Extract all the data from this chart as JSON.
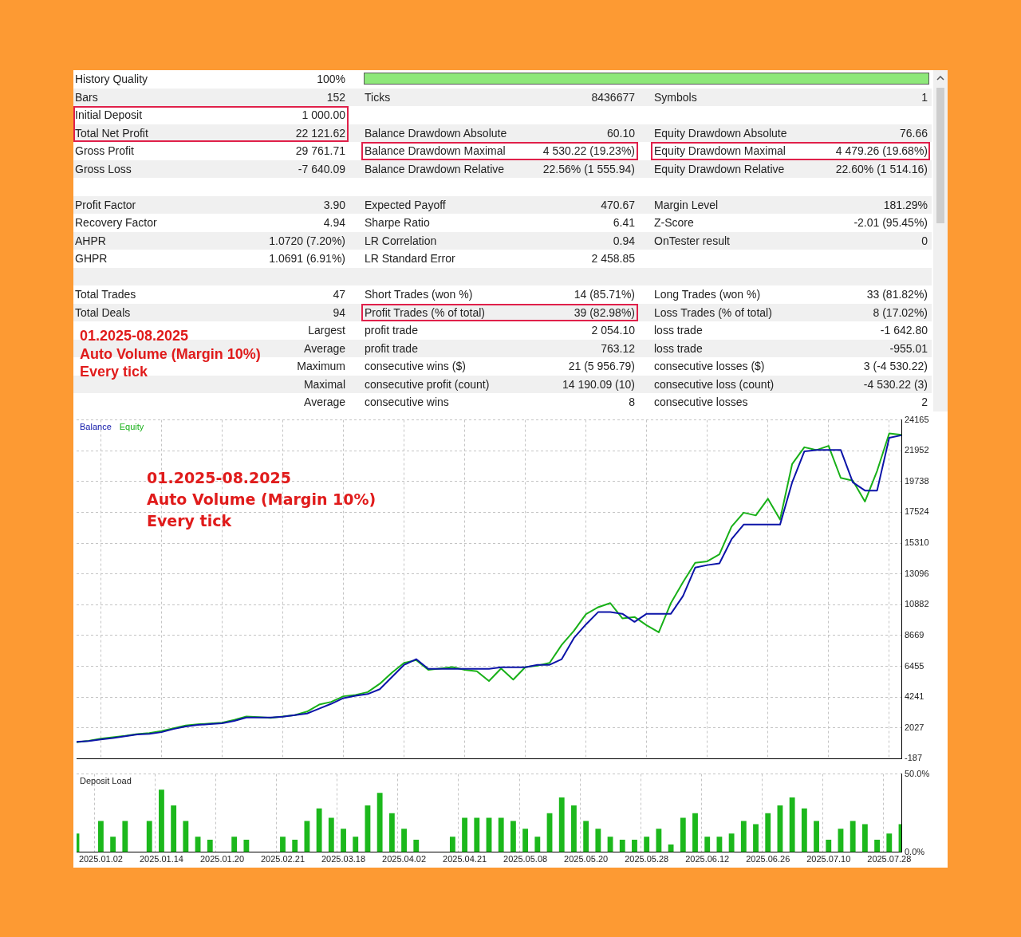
{
  "chart_data": [
    {
      "type": "other",
      "annotations": [
        "History Quality",
        "100%",
        "Bars",
        "152",
        "Ticks",
        "8436677",
        "Symbols",
        "1",
        "Initial Deposit",
        "1 000.00",
        "Total Net Profit",
        "22 121.62",
        "Balance Drawdown Absolute",
        "60.10",
        "Equity Drawdown Absolute",
        "76.66",
        "Gross Profit",
        "29 761.71",
        "Balance Drawdown Maximal",
        "4 530.22 (19.23%)",
        "Equity Drawdown Maximal",
        "4 479.26 (19.68%)",
        "Gross Loss",
        "-7 640.09",
        "Balance Drawdown Relative",
        "22.56% (1 555.94)",
        "Equity Drawdown Relative",
        "22.60% (1 514.16)",
        "Profit Factor",
        "3.90",
        "Expected Payoff",
        "470.67",
        "Margin Level",
        "181.29%",
        "Recovery Factor",
        "4.94",
        "Sharpe Ratio",
        "6.41",
        "Z-Score",
        "-2.01 (95.45%)",
        "AHPR",
        "1.0720 (7.20%)",
        "LR Correlation",
        "0.94",
        "OnTester result",
        "0",
        "GHPR",
        "1.0691 (6.91%)",
        "LR Standard Error",
        "2 458.85",
        "Total Trades",
        "47",
        "Short Trades (won %)",
        "14 (85.71%)",
        "Long Trades (won %)",
        "33 (81.82%)",
        "Total Deals",
        "94",
        "Profit Trades (% of total)",
        "39 (82.98%)",
        "Loss Trades (% of total)",
        "8 (17.02%)",
        "01.2025-08.2025",
        "Largest",
        "profit trade",
        "2 054.10",
        "loss trade",
        "-1 642.80",
        "Auto Volume (Margin 10%)",
        "Average",
        "profit trade",
        "763.12",
        "loss trade",
        "-955.01",
        "Every tick",
        "Maximum",
        "consecutive wins ($)",
        "21 (5 956.79)",
        "consecutive losses ($)",
        "3 (-4 530.22)",
        "Maximal",
        "consecutive profit (count)",
        "14 190.09 (10)",
        "consecutive loss (count)",
        "-4 530.22 (3)",
        "Average",
        "consecutive wins",
        "8",
        "consecutive losses",
        "2"
      ]
    },
    {
      "type": "line",
      "categories": [
        null,
        null,
        "2025.01.02",
        null,
        null,
        null,
        null,
        "2025.01.14",
        null,
        null,
        null,
        null,
        "2025.01.20",
        null,
        null,
        null,
        null,
        "2025.02.21",
        null,
        null,
        null,
        null,
        "2025.03.18",
        null,
        null,
        null,
        null,
        "2025.04.02",
        null,
        null,
        null,
        null,
        "2025.04.21",
        null,
        null,
        null,
        null,
        "2025.05.08",
        null,
        null,
        null,
        null,
        "2025.05.20",
        null,
        null,
        null,
        null,
        "2025.05.28",
        null,
        null,
        null,
        null,
        "2025.06.12",
        null,
        null,
        null,
        null,
        "2025.06.26",
        null,
        null,
        null,
        null,
        "2025.07.10",
        null,
        null,
        null,
        null,
        "2025.07.28",
        null
      ],
      "series": [
        {
          "name": "Balance",
          "color": "#0c14a8",
          "values": [
            1020,
            1080,
            1200,
            1300,
            1430,
            1550,
            1600,
            1720,
            1950,
            2130,
            2240,
            2300,
            2360,
            2530,
            2770,
            2770,
            2770,
            2830,
            2950,
            3060,
            3410,
            3760,
            4170,
            4340,
            4460,
            4810,
            5680,
            6560,
            6970,
            6270,
            6270,
            6270,
            6270,
            6270,
            6270,
            6380,
            6380,
            6380,
            6560,
            6560,
            6970,
            8480,
            9470,
            10350,
            10350,
            10230,
            9650,
            10230,
            10230,
            10230,
            11510,
            13550,
            13730,
            13850,
            15590,
            16640,
            16640,
            16640,
            16640,
            19680,
            21900,
            22010,
            22010,
            22010,
            19680,
            19090,
            19090,
            22880,
            23060
          ]
        },
        {
          "name": "Equity",
          "color": "#18b018",
          "values": [
            1000,
            1100,
            1250,
            1350,
            1450,
            1580,
            1650,
            1800,
            2000,
            2200,
            2280,
            2350,
            2400,
            2600,
            2850,
            2800,
            2750,
            2850,
            2950,
            3200,
            3700,
            3900,
            4300,
            4400,
            4600,
            5200,
            6000,
            6700,
            6900,
            6200,
            6300,
            6400,
            6200,
            6100,
            5400,
            6300,
            5500,
            6400,
            6500,
            6700,
            8000,
            9000,
            10200,
            10700,
            11000,
            9900,
            10000,
            9400,
            8900,
            11000,
            12500,
            13900,
            14000,
            14500,
            16500,
            17500,
            17300,
            18500,
            17000,
            21000,
            22200,
            22000,
            22300,
            20000,
            19800,
            18300,
            20500,
            23200,
            23100
          ]
        }
      ],
      "ylim": [
        -187,
        24165
      ],
      "yticks": [
        -187,
        2027,
        4241,
        6455,
        8669,
        10882,
        13096,
        15310,
        17524,
        19738,
        21952,
        24165
      ],
      "grid": true,
      "legend": "top left",
      "marker": "none",
      "line_style": "solid",
      "tick_labels": "y",
      "annotations": [
        "01.2025-08.2025",
        "Auto Volume (Margin 10%)",
        "Every tick"
      ]
    },
    {
      "type": "bar",
      "title": "Deposit Load",
      "categories": [
        null,
        null,
        "2025.01.02",
        null,
        null,
        null,
        null,
        "2025.01.14",
        null,
        null,
        null,
        null,
        "2025.01.20",
        null,
        null,
        null,
        null,
        "2025.02.21",
        null,
        null,
        null,
        null,
        "2025.03.18",
        null,
        null,
        null,
        null,
        "2025.04.02",
        null,
        null,
        null,
        null,
        "2025.04.21",
        null,
        null,
        null,
        null,
        "2025.05.08",
        null,
        null,
        null,
        null,
        "2025.05.20",
        null,
        null,
        null,
        null,
        "2025.05.28",
        null,
        null,
        null,
        null,
        "2025.06.12",
        null,
        null,
        null,
        null,
        "2025.06.26",
        null,
        null,
        null,
        null,
        "2025.07.10",
        null,
        null,
        null,
        null,
        "2025.07.28",
        null
      ],
      "values": [
        12,
        null,
        20,
        10,
        20,
        null,
        20,
        40,
        30,
        20,
        10,
        8,
        null,
        10,
        8,
        null,
        null,
        10,
        8,
        20,
        28,
        22,
        15,
        10,
        30,
        38,
        25,
        15,
        8,
        null,
        null,
        10,
        22,
        22,
        22,
        22,
        20,
        15,
        10,
        25,
        35,
        30,
        20,
        15,
        10,
        8,
        8,
        10,
        15,
        5,
        22,
        25,
        10,
        10,
        12,
        20,
        18,
        25,
        30,
        35,
        28,
        20,
        8,
        15,
        20,
        18,
        8,
        12,
        18
      ],
      "color": "#1cb81c",
      "ylim": [
        0,
        50
      ],
      "yticks": [
        {
          "value": 0,
          "label": "0.0%"
        },
        {
          "value": 50,
          "label": "50.0%"
        }
      ],
      "grid": true
    }
  ]
}
